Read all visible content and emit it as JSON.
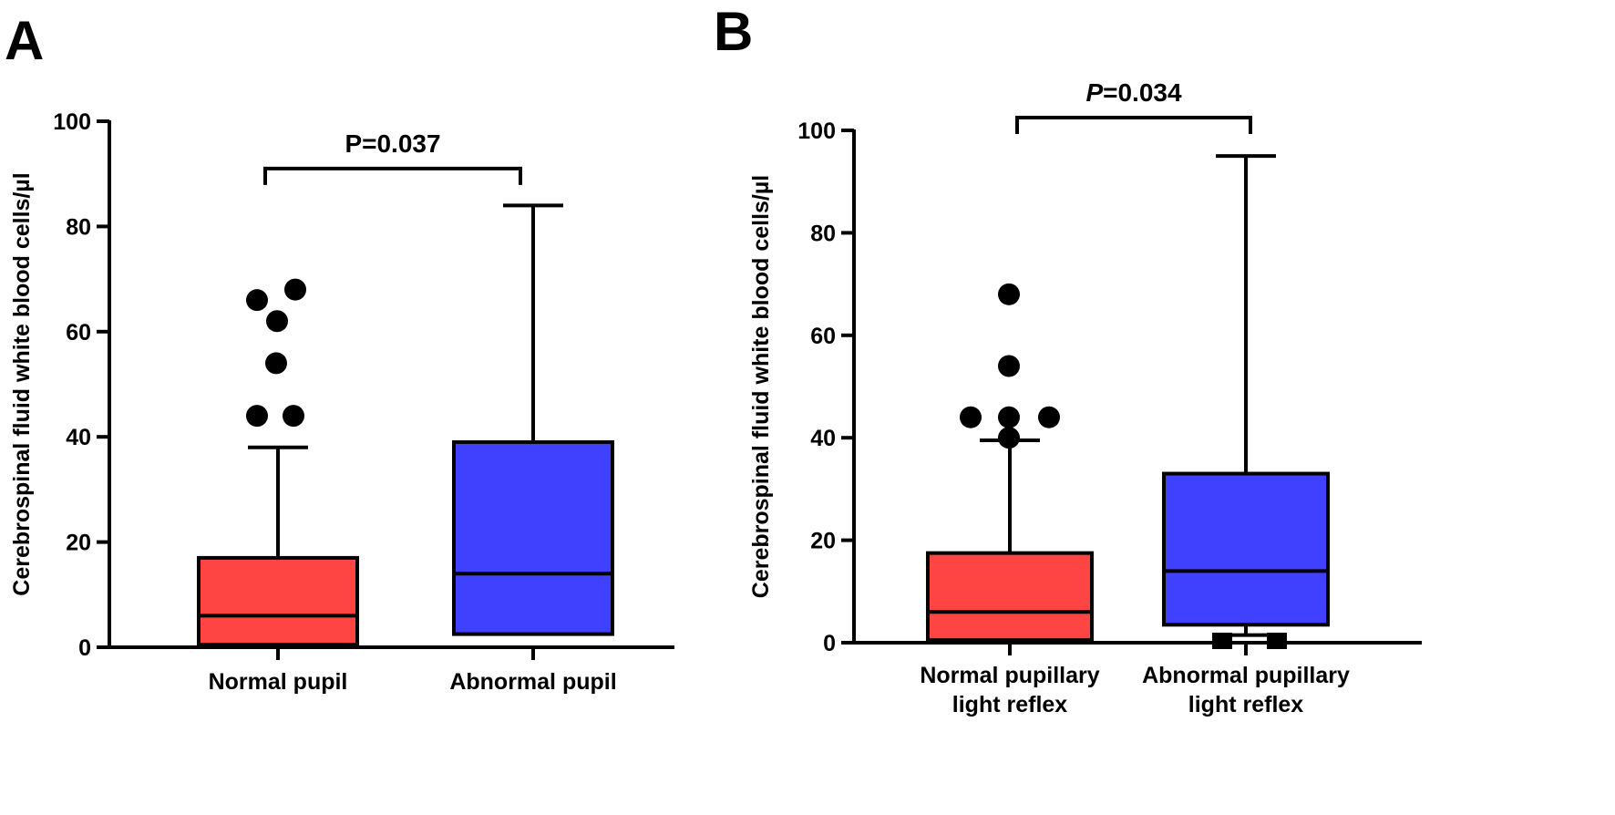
{
  "figure": {
    "panels": [
      "A",
      "B"
    ]
  },
  "chart_data": [
    {
      "panel": "A",
      "type": "box",
      "ylabel": "Cerebrospinal fluid white blood cells/µl",
      "ylim": [
        0,
        100
      ],
      "yticks": [
        0,
        20,
        40,
        60,
        80,
        100
      ],
      "categories": [
        "Normal pupil",
        "Abnormal pupil"
      ],
      "colors": [
        "#FF4444",
        "#4040FF"
      ],
      "boxes": [
        {
          "min": 0,
          "q1": 0.5,
          "median": 6,
          "q3": 17,
          "max": 38,
          "outliers": [
            44,
            44,
            54,
            62,
            66,
            68
          ]
        },
        {
          "min": 2.5,
          "q1": 2.5,
          "median": 14,
          "q3": 39,
          "max": 84,
          "outliers": []
        }
      ],
      "annotation": {
        "text": "P=0.037",
        "italic_p": false,
        "between": [
          0,
          1
        ],
        "y": 91
      }
    },
    {
      "panel": "B",
      "type": "box",
      "ylabel": "Cerebrospinal fluid white blood cells/µl",
      "ylim": [
        0,
        100
      ],
      "yticks": [
        0,
        20,
        40,
        60,
        80,
        100
      ],
      "categories": [
        "Normal pupillary light reflex",
        "Abnormal pupillary light reflex"
      ],
      "category_lines": [
        [
          "Normal pupillary",
          "light reflex"
        ],
        [
          "Abnormal pupillary",
          "light reflex"
        ]
      ],
      "colors": [
        "#FF4444",
        "#4040FF"
      ],
      "boxes": [
        {
          "min": 0,
          "q1": 0.5,
          "median": 6,
          "q3": 17.5,
          "max": 39.5,
          "outliers": [
            40,
            44,
            44,
            44,
            54,
            68
          ]
        },
        {
          "min": 1.5,
          "q1": 3.5,
          "median": 14,
          "q3": 33,
          "max": 95,
          "outliers": [
            0,
            0
          ]
        }
      ],
      "annotation": {
        "text": "P=0.034",
        "italic_p": true,
        "between": [
          0,
          1
        ],
        "y": 102.5
      }
    }
  ]
}
